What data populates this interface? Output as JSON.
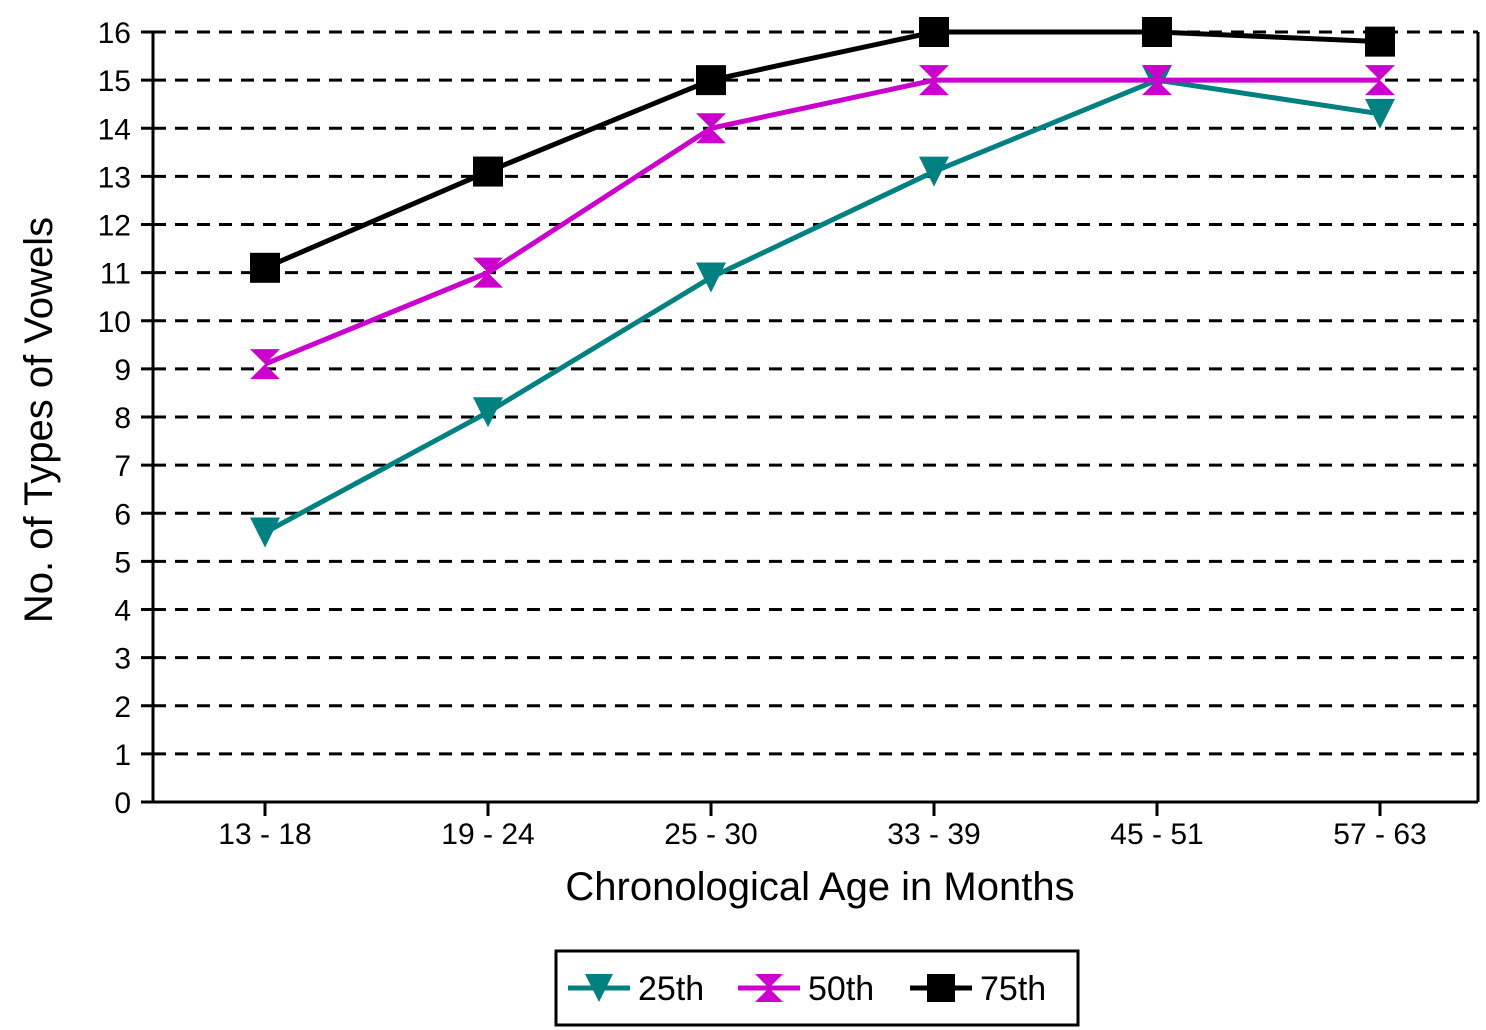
{
  "chart_data": {
    "type": "line",
    "categories": [
      "13 - 18",
      "19 - 24",
      "25 - 30",
      "33 - 39",
      "45 - 51",
      "57 - 63"
    ],
    "series": [
      {
        "name": "25th",
        "values": [
          5.6,
          8.1,
          10.9,
          13.1,
          15.0,
          14.3
        ],
        "color": "#008080",
        "marker": "triangle-down"
      },
      {
        "name": "50th",
        "values": [
          9.1,
          11.0,
          14.0,
          15.0,
          15.0,
          15.0
        ],
        "color": "#cc00cc",
        "marker": "hourglass"
      },
      {
        "name": "75th",
        "values": [
          11.1,
          13.1,
          15.0,
          16.0,
          16.0,
          15.8
        ],
        "color": "#000000",
        "marker": "square"
      }
    ],
    "title": "",
    "xlabel": "Chronological Age in Months",
    "ylabel": "No. of Types of Vowels",
    "ylim": [
      0,
      16
    ],
    "yticks": [
      0,
      1,
      2,
      3,
      4,
      5,
      6,
      7,
      8,
      9,
      10,
      11,
      12,
      13,
      14,
      15,
      16
    ],
    "grid": "horizontal dashed",
    "legend": "bottom-center"
  }
}
